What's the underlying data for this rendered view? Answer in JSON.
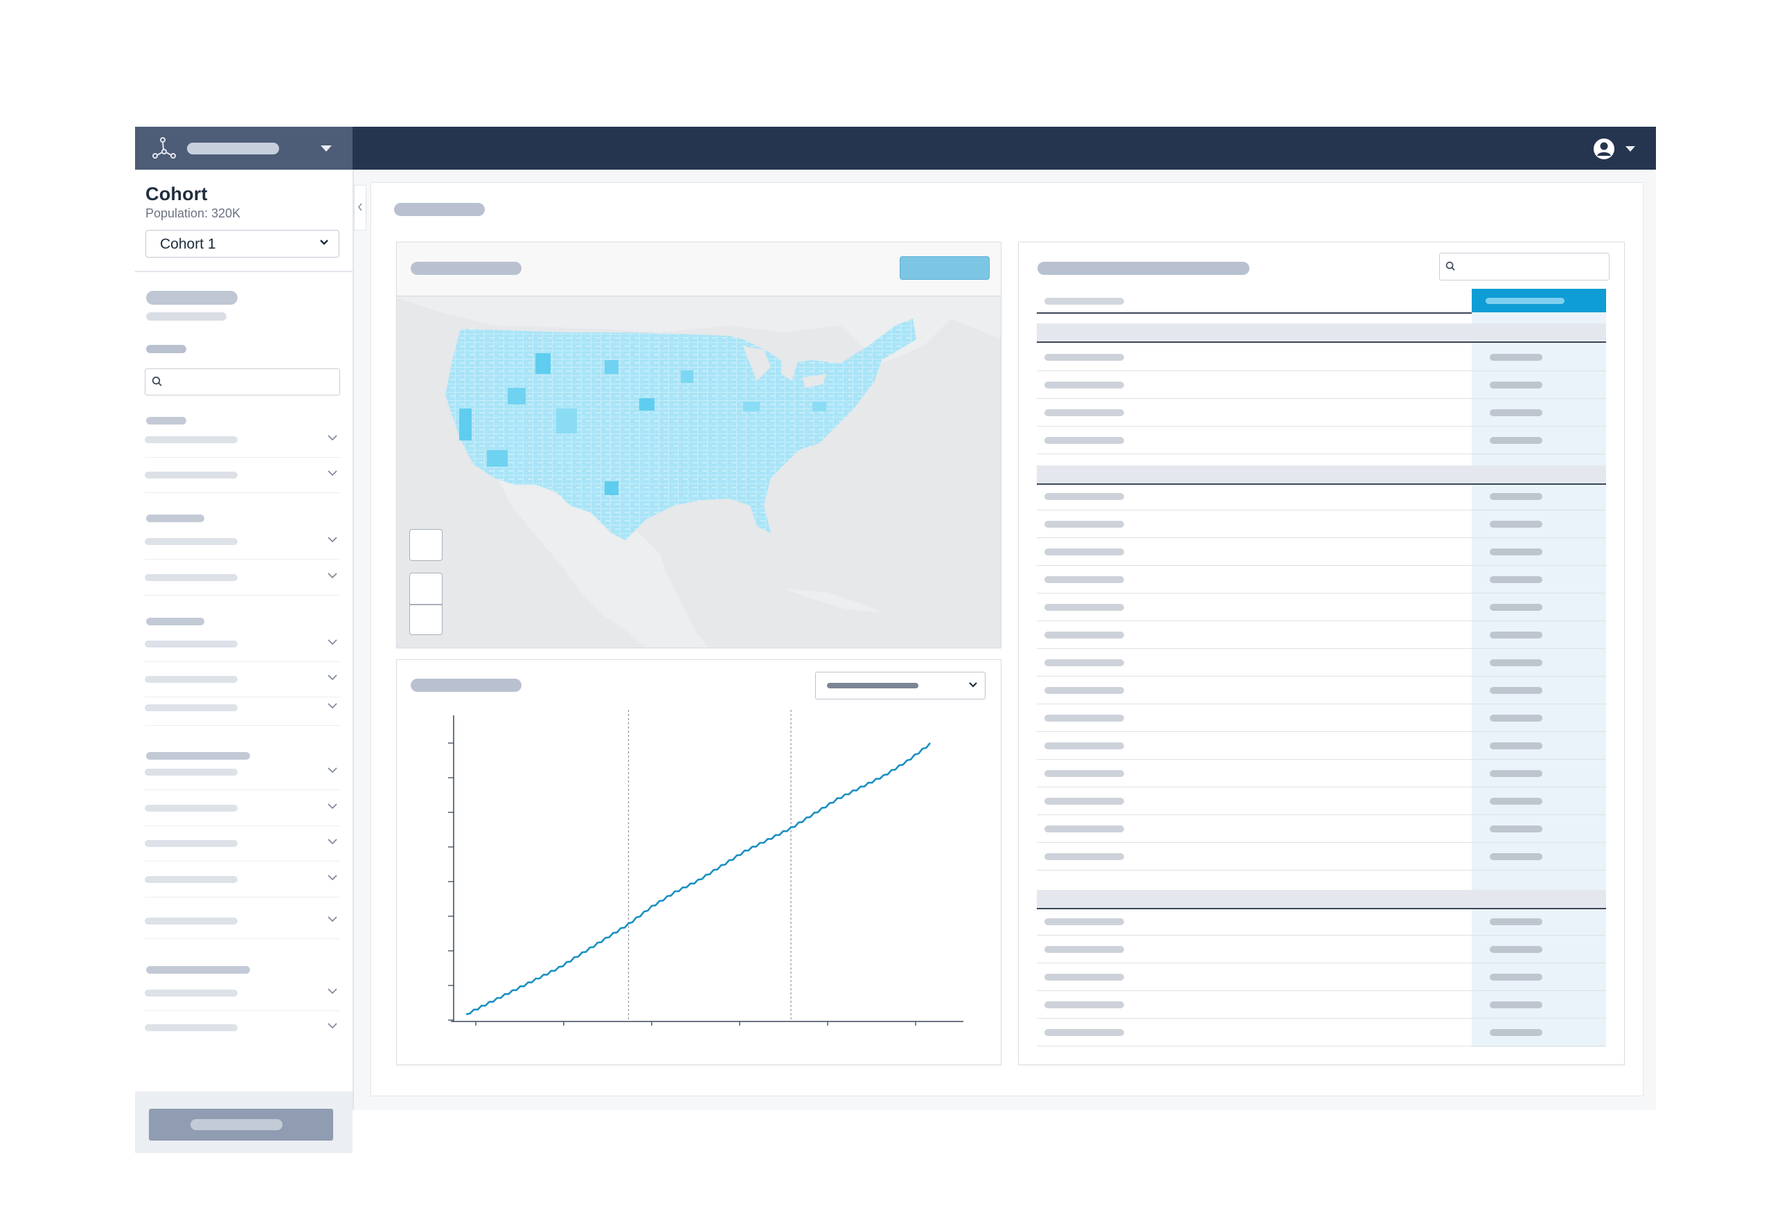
{
  "sidebar": {
    "cohort_title": "Cohort",
    "population_label": "Population: 320K",
    "cohort_select_value": "Cohort 1"
  },
  "colors": {
    "topbar": "#253550",
    "brand_block": "#4d5c77",
    "accent": "#0e9dd4",
    "map_button": "#7cc6e4",
    "line_series": "#1a8fc2"
  },
  "icons": {
    "logo": "network-logo-icon",
    "user": "user-account-icon",
    "search": "search-icon",
    "chevron": "chevron-down-icon",
    "collapse": "chevron-left-icon"
  },
  "map": {
    "region": "United States counties choropleth"
  },
  "chart_data": {
    "type": "line",
    "title": "",
    "xlabel": "",
    "ylabel": "",
    "x": [
      0,
      1,
      2,
      3,
      4,
      5,
      6,
      7,
      8,
      9,
      10,
      11,
      12,
      13,
      14,
      15,
      16,
      17,
      18,
      19,
      20
    ],
    "series": [
      {
        "values": [
          2,
          6,
          10,
          14,
          18,
          23,
          28,
          33,
          39,
          44,
          48,
          53,
          58,
          62,
          66,
          71,
          76,
          80,
          84,
          89,
          95
        ]
      }
    ],
    "xlim": [
      0,
      20
    ],
    "ylim": [
      0,
      100
    ],
    "grid": "two vertical dashed reference lines"
  }
}
